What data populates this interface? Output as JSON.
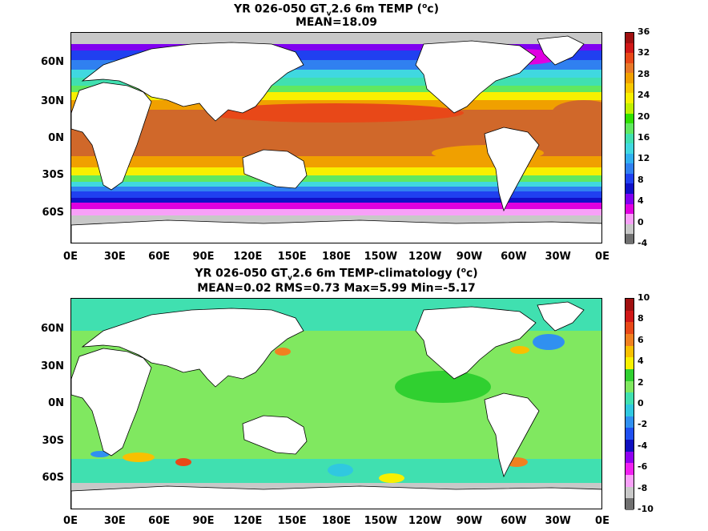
{
  "top": {
    "title_line1_a": "YR 026-050 GT",
    "title_line1_sub": "v",
    "title_line1_b": "2.6 6m TEMP (",
    "title_line1_sup": "o",
    "title_line1_c": "c)",
    "title_line2": "MEAN=18.09",
    "ylabels": [
      "60N",
      "30N",
      "0N",
      "30S",
      "60S"
    ],
    "xlabels": [
      "0E",
      "30E",
      "60E",
      "90E",
      "120E",
      "150E",
      "180E",
      "150W",
      "120W",
      "90W",
      "60W",
      "30W",
      "0E"
    ],
    "colorbar_labels": [
      "36",
      "32",
      "28",
      "24",
      "20",
      "16",
      "12",
      "8",
      "4",
      "0",
      "-4"
    ],
    "colorbar_colors": [
      "#a01010",
      "#d01818",
      "#e84818",
      "#e87828",
      "#f0a000",
      "#f8c800",
      "#f8f000",
      "#c0f000",
      "#30e000",
      "#60e860",
      "#40e0b0",
      "#40d8e0",
      "#30b0f0",
      "#3080f0",
      "#2040f0",
      "#1010c8",
      "#8000f0",
      "#e000e0",
      "#f8a0f8",
      "#c8c8c8",
      "#707070"
    ]
  },
  "bottom": {
    "title_line1_a": "YR 026-050 GT",
    "title_line1_sub": "v",
    "title_line1_b": "2.6 6m TEMP-climatology (",
    "title_line1_sup": "o",
    "title_line1_c": "c)",
    "title_line2": "MEAN=0.02   RMS=0.73   Max=5.99   Min=-5.17",
    "ylabels": [
      "60N",
      "30N",
      "0N",
      "30S",
      "60S"
    ],
    "xlabels": [
      "0E",
      "30E",
      "60E",
      "90E",
      "120E",
      "150E",
      "180E",
      "150W",
      "120W",
      "90W",
      "60W",
      "30W",
      "0E"
    ],
    "colorbar_labels": [
      "10",
      "8",
      "6",
      "4",
      "2",
      "0",
      "-2",
      "-4",
      "-6",
      "-8",
      "-10"
    ],
    "colorbar_colors": [
      "#a01010",
      "#d01818",
      "#e84818",
      "#f08020",
      "#f8c000",
      "#f8f000",
      "#30d030",
      "#80e860",
      "#40e0b0",
      "#30c8e0",
      "#3090f0",
      "#2050f0",
      "#1010c0",
      "#9000f0",
      "#f020f0",
      "#f8a0f8",
      "#c8c8c8",
      "#707070"
    ]
  }
}
